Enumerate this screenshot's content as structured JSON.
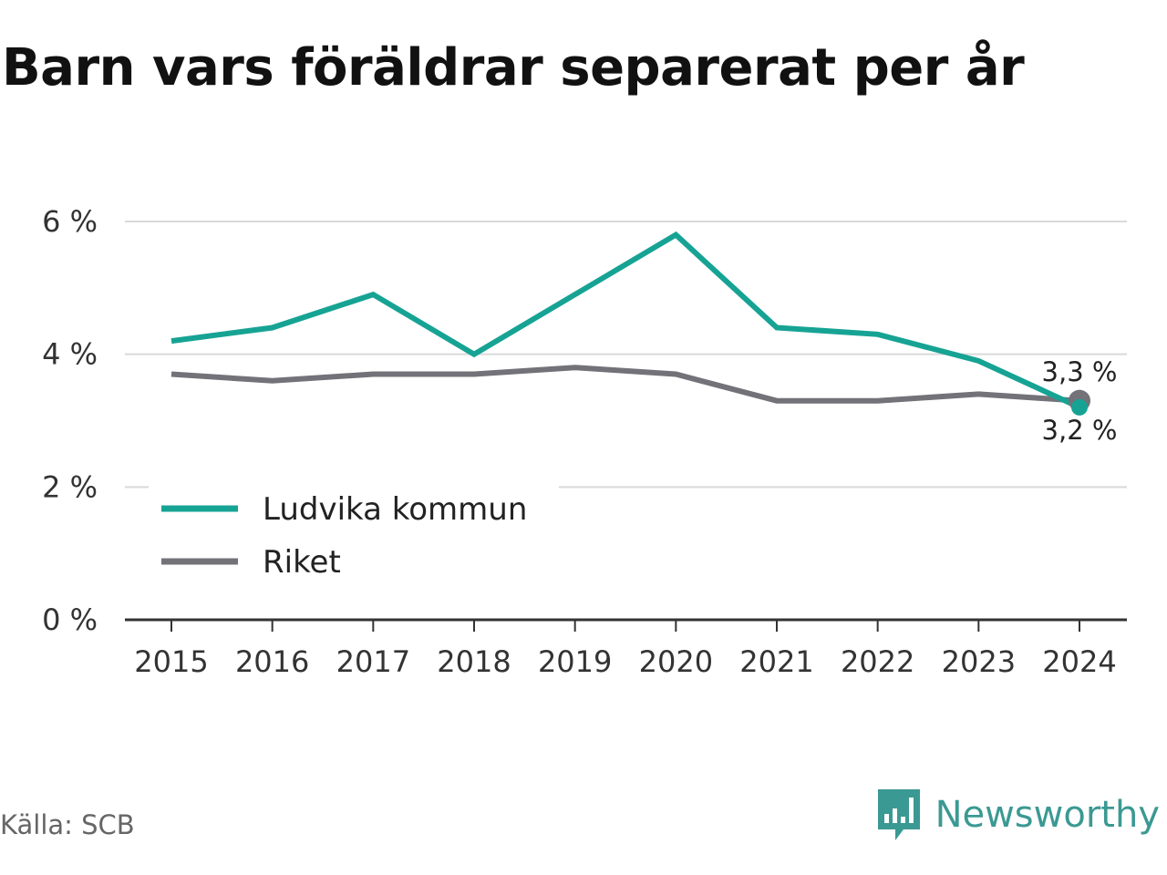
{
  "title": "Barn vars föräldrar separerat per år",
  "source": "Källa: SCB",
  "brand": {
    "name": "Newsworthy",
    "icon": "newsworthy-logo-icon",
    "color": "#3b9993"
  },
  "chart_data": {
    "type": "line",
    "x": [
      "2015",
      "2016",
      "2017",
      "2018",
      "2019",
      "2020",
      "2021",
      "2022",
      "2023",
      "2024"
    ],
    "series": [
      {
        "name": "Ludvika kommun",
        "color": "#16a394",
        "values": [
          4.2,
          4.4,
          4.9,
          4.0,
          4.9,
          5.8,
          4.4,
          4.3,
          3.9,
          3.2
        ],
        "end_label": "3,2 %"
      },
      {
        "name": "Riket",
        "color": "#737279",
        "values": [
          3.7,
          3.6,
          3.7,
          3.7,
          3.8,
          3.7,
          3.3,
          3.3,
          3.4,
          3.3
        ],
        "end_label": "3,3 %"
      }
    ],
    "ylim": [
      0,
      6
    ],
    "yticks": [
      0,
      2,
      4,
      6
    ],
    "ytick_labels": [
      "0 %",
      "2 %",
      "4 %",
      "6 %"
    ],
    "grid": true,
    "legend_position": "bottom-left"
  }
}
